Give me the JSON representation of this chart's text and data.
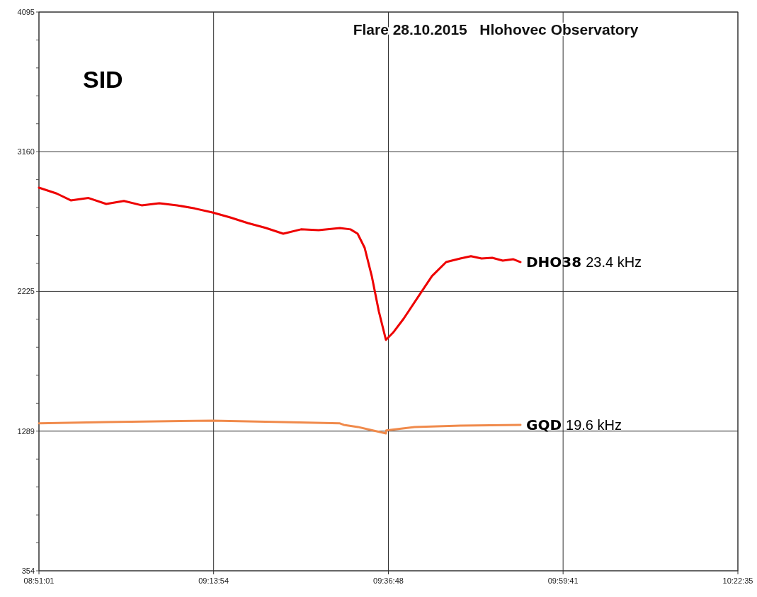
{
  "chart_data": {
    "type": "line",
    "title": "Flare 28.10.2015   Hlohovec Observatory",
    "annotations": [
      "SID"
    ],
    "xlim": [
      8.850278,
      10.376389
    ],
    "xticks": [
      {
        "value": 8.850278,
        "label": "08:51:01"
      },
      {
        "value": 9.231667,
        "label": "09:13:54"
      },
      {
        "value": 9.613333,
        "label": "09:36:48"
      },
      {
        "value": 9.994722,
        "label": "09:59:41"
      },
      {
        "value": 10.376389,
        "label": "10:22:35"
      }
    ],
    "ylim": [
      354,
      4095
    ],
    "yticks": [
      354,
      {
        "value": 541,
        "label": null
      },
      {
        "value": 728,
        "label": null
      },
      {
        "value": 915,
        "label": null
      },
      {
        "value": 1102,
        "label": null
      },
      1289,
      {
        "value": 1476,
        "label": null
      },
      {
        "value": 1663,
        "label": null
      },
      {
        "value": 1851,
        "label": null
      },
      {
        "value": 2038,
        "label": null
      },
      2225,
      {
        "value": 2412,
        "label": null
      },
      {
        "value": 2599,
        "label": null
      },
      {
        "value": 2786,
        "label": null
      },
      {
        "value": 2973,
        "label": null
      },
      3160,
      {
        "value": 3347,
        "label": null
      },
      {
        "value": 3534,
        "label": null
      },
      {
        "value": 3721,
        "label": null
      },
      {
        "value": 3908,
        "label": null
      },
      4095
    ],
    "grid": true,
    "series": [
      {
        "name": "DHO38 23.4 kHz",
        "color": "#ee0000",
        "x": [
          8.8503,
          8.8889,
          8.9198,
          8.9585,
          8.9972,
          9.0358,
          9.0745,
          9.1131,
          9.1518,
          9.1904,
          9.2291,
          9.2678,
          9.3064,
          9.3451,
          9.3837,
          9.4224,
          9.461,
          9.5074,
          9.5306,
          9.5461,
          9.5615,
          9.577,
          9.5925,
          9.6079,
          9.6234,
          9.6466,
          9.6775,
          9.7084,
          9.7394,
          9.7703,
          9.7935,
          9.8167,
          9.8399,
          9.863,
          9.8862,
          9.9017
        ],
        "values": [
          2919,
          2880,
          2834,
          2850,
          2810,
          2830,
          2801,
          2815,
          2801,
          2780,
          2753,
          2720,
          2682,
          2650,
          2611,
          2640,
          2635,
          2649,
          2640,
          2611,
          2516,
          2327,
          2090,
          1900,
          1948,
          2042,
          2185,
          2327,
          2421,
          2445,
          2460,
          2445,
          2450,
          2431,
          2440,
          2421
        ]
      },
      {
        "name": "GQD 19.6 kHz",
        "color": "#f08a4b",
        "x": [
          8.8503,
          8.9972,
          9.2291,
          9.3837,
          9.5074,
          9.5159,
          9.5468,
          9.6079,
          9.6086,
          9.6705,
          9.7703,
          9.9017
        ],
        "values": [
          1341,
          1350,
          1359,
          1350,
          1341,
          1331,
          1317,
          1274,
          1294,
          1317,
          1326,
          1331
        ]
      }
    ]
  }
}
